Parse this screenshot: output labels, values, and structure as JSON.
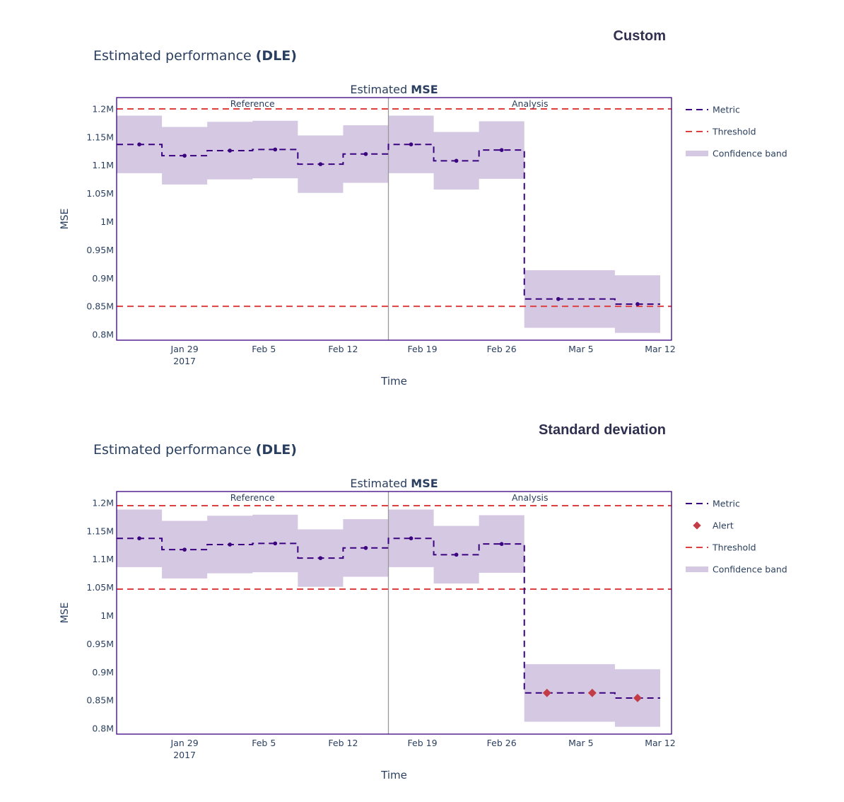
{
  "chart_data": [
    {
      "type": "line",
      "caption": "Custom",
      "figure_title_prefix": "Estimated performance ",
      "figure_title_bold": "(DLE)",
      "plot_title_prefix": "Estimated ",
      "plot_title_bold": "MSE",
      "xlabel": "Time",
      "ylabel": "MSE",
      "ylim": [
        0.79,
        1.22
      ],
      "yticks": [
        0.8,
        0.85,
        0.9,
        0.95,
        1.0,
        1.05,
        1.1,
        1.15,
        1.2
      ],
      "ytick_labels": [
        "0.8M",
        "0.85M",
        "0.9M",
        "0.95M",
        "1M",
        "1.05M",
        "1.1M",
        "1.15M",
        "1.2M"
      ],
      "xlim": [
        "2017-01-23",
        "2017-03-13"
      ],
      "xticks": [
        "2017-01-29",
        "2017-02-05",
        "2017-02-12",
        "2017-02-19",
        "2017-02-26",
        "2017-03-05",
        "2017-03-12"
      ],
      "xtick_labels": [
        "Jan 29",
        "Feb 5",
        "Feb 12",
        "Feb 19",
        "Feb 26",
        "Mar 5",
        "Mar 12"
      ],
      "xtick_sublabel": "2017",
      "period_labels": [
        "Reference",
        "Analysis"
      ],
      "chunk_edges": [
        "2017-01-23",
        "2017-01-27",
        "2017-01-31",
        "2017-02-04",
        "2017-02-08",
        "2017-02-12",
        "2017-02-16",
        "2017-02-20",
        "2017-02-24",
        "2017-02-28",
        "2017-03-08",
        "2017-03-12"
      ],
      "period_split": "2017-02-16",
      "metric": [
        1.137,
        1.117,
        1.126,
        1.128,
        1.102,
        1.12,
        1.137,
        1.108,
        1.127,
        0.863,
        0.854
      ],
      "band_upper": [
        1.188,
        1.168,
        1.177,
        1.179,
        1.153,
        1.171,
        1.188,
        1.159,
        1.178,
        0.914,
        0.905
      ],
      "band_lower": [
        1.086,
        1.066,
        1.075,
        1.077,
        1.051,
        1.069,
        1.086,
        1.057,
        1.076,
        0.812,
        0.803
      ],
      "marker_dates": [
        "2017-01-25",
        "2017-01-29",
        "2017-02-02",
        "2017-02-06",
        "2017-02-10",
        "2017-02-14",
        "2017-02-18",
        "2017-02-22",
        "2017-02-26",
        "2017-03-03",
        "2017-03-10"
      ],
      "thresholds": [
        1.2,
        0.85
      ],
      "alerts": [],
      "legend": [
        "Metric",
        "Threshold",
        "Confidence band"
      ],
      "legend_position": "right",
      "colors": {
        "metric": "#3b0280",
        "threshold": "#dd4040",
        "band": "#d4c8e3",
        "alert": "#c23b47",
        "frame": "#3b0280",
        "divider": "#999999"
      }
    },
    {
      "type": "line",
      "caption": "Standard deviation",
      "figure_title_prefix": "Estimated performance ",
      "figure_title_bold": "(DLE)",
      "plot_title_prefix": "Estimated ",
      "plot_title_bold": "MSE",
      "xlabel": "Time",
      "ylabel": "MSE",
      "ylim": [
        0.79,
        1.22
      ],
      "yticks": [
        0.8,
        0.85,
        0.9,
        0.95,
        1.0,
        1.05,
        1.1,
        1.15,
        1.2
      ],
      "ytick_labels": [
        "0.8M",
        "0.85M",
        "0.9M",
        "0.95M",
        "1M",
        "1.05M",
        "1.1M",
        "1.15M",
        "1.2M"
      ],
      "xlim": [
        "2017-01-23",
        "2017-03-13"
      ],
      "xticks": [
        "2017-01-29",
        "2017-02-05",
        "2017-02-12",
        "2017-02-19",
        "2017-02-26",
        "2017-03-05",
        "2017-03-12"
      ],
      "xtick_labels": [
        "Jan 29",
        "Feb 5",
        "Feb 12",
        "Feb 19",
        "Feb 26",
        "Mar 5",
        "Mar 12"
      ],
      "xtick_sublabel": "2017",
      "period_labels": [
        "Reference",
        "Analysis"
      ],
      "chunk_edges": [
        "2017-01-23",
        "2017-01-27",
        "2017-01-31",
        "2017-02-04",
        "2017-02-08",
        "2017-02-12",
        "2017-02-16",
        "2017-02-20",
        "2017-02-24",
        "2017-02-28",
        "2017-03-08",
        "2017-03-12"
      ],
      "period_split": "2017-02-16",
      "metric": [
        1.137,
        1.117,
        1.126,
        1.128,
        1.102,
        1.12,
        1.137,
        1.108,
        1.127,
        0.863,
        0.854
      ],
      "band_upper": [
        1.188,
        1.168,
        1.177,
        1.179,
        1.153,
        1.171,
        1.188,
        1.159,
        1.178,
        0.914,
        0.905
      ],
      "band_lower": [
        1.086,
        1.066,
        1.075,
        1.077,
        1.051,
        1.069,
        1.086,
        1.057,
        1.076,
        0.812,
        0.803
      ],
      "marker_dates": [
        "2017-01-25",
        "2017-01-29",
        "2017-02-02",
        "2017-02-06",
        "2017-02-10",
        "2017-02-14",
        "2017-02-18",
        "2017-02-22",
        "2017-02-26",
        "2017-03-02",
        "2017-03-06",
        "2017-03-10"
      ],
      "metric_markers": [
        1.137,
        1.117,
        1.126,
        1.128,
        1.102,
        1.12,
        1.137,
        1.108,
        1.127,
        0.863,
        0.863,
        0.854
      ],
      "thresholds": [
        1.195,
        1.047
      ],
      "alerts": [
        9,
        10,
        11
      ],
      "legend": [
        "Metric",
        "Alert",
        "Threshold",
        "Confidence band"
      ],
      "legend_position": "right",
      "colors": {
        "metric": "#3b0280",
        "threshold": "#dd4040",
        "band": "#d4c8e3",
        "alert": "#c23b47",
        "frame": "#3b0280",
        "divider": "#999999"
      }
    }
  ]
}
